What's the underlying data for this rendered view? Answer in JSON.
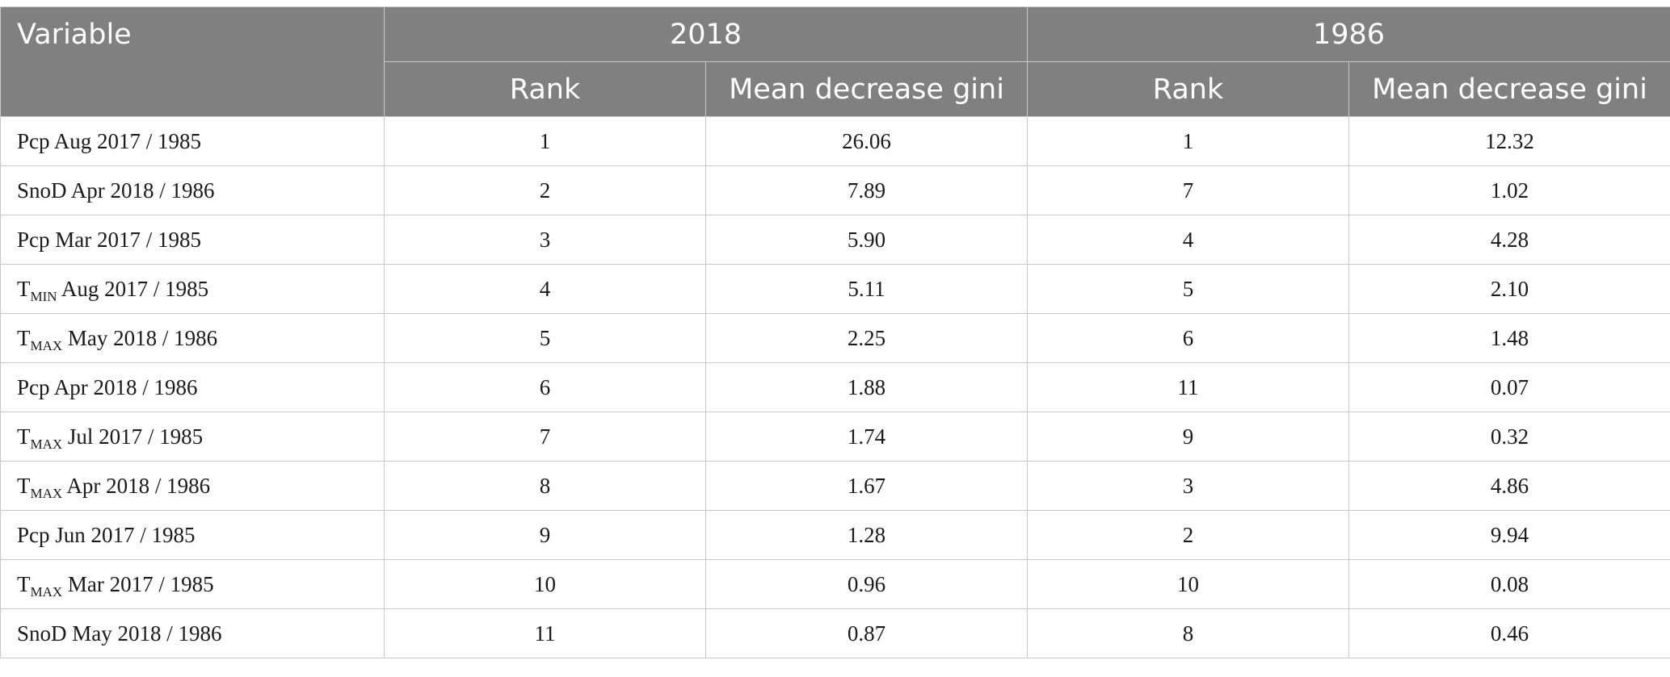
{
  "header": {
    "variable": "Variable",
    "group_2018": "2018",
    "group_1986": "1986",
    "rank": "Rank",
    "mdg": "Mean decrease gini"
  },
  "rows": [
    {
      "prefix": "Pcp",
      "sub": "",
      "rest": " Aug 2017 / 1985",
      "rank_2018": "1",
      "mdg_2018": "26.06",
      "rank_1986": "1",
      "mdg_1986": "12.32"
    },
    {
      "prefix": "SnoD",
      "sub": "",
      "rest": " Apr 2018 / 1986",
      "rank_2018": "2",
      "mdg_2018": "7.89",
      "rank_1986": "7",
      "mdg_1986": "1.02"
    },
    {
      "prefix": "Pcp",
      "sub": "",
      "rest": " Mar 2017 / 1985",
      "rank_2018": "3",
      "mdg_2018": "5.90",
      "rank_1986": "4",
      "mdg_1986": "4.28"
    },
    {
      "prefix": "T",
      "sub": "MIN",
      "rest": " Aug 2017 / 1985",
      "rank_2018": "4",
      "mdg_2018": "5.11",
      "rank_1986": "5",
      "mdg_1986": "2.10"
    },
    {
      "prefix": "T",
      "sub": "MAX",
      "rest": " May 2018 / 1986",
      "rank_2018": "5",
      "mdg_2018": "2.25",
      "rank_1986": "6",
      "mdg_1986": "1.48"
    },
    {
      "prefix": "Pcp",
      "sub": "",
      "rest": " Apr 2018 / 1986",
      "rank_2018": "6",
      "mdg_2018": "1.88",
      "rank_1986": "11",
      "mdg_1986": "0.07"
    },
    {
      "prefix": "T",
      "sub": "MAX",
      "rest": " Jul 2017 / 1985",
      "rank_2018": "7",
      "mdg_2018": "1.74",
      "rank_1986": "9",
      "mdg_1986": "0.32"
    },
    {
      "prefix": "T",
      "sub": "MAX",
      "rest": " Apr 2018 / 1986",
      "rank_2018": "8",
      "mdg_2018": "1.67",
      "rank_1986": "3",
      "mdg_1986": "4.86"
    },
    {
      "prefix": "Pcp",
      "sub": "",
      "rest": " Jun 2017 / 1985",
      "rank_2018": "9",
      "mdg_2018": "1.28",
      "rank_1986": "2",
      "mdg_1986": "9.94"
    },
    {
      "prefix": "T",
      "sub": "MAX",
      "rest": " Mar 2017 / 1985",
      "rank_2018": "10",
      "mdg_2018": "0.96",
      "rank_1986": "10",
      "mdg_1986": "0.08"
    },
    {
      "prefix": "SnoD",
      "sub": "",
      "rest": " May 2018 / 1986",
      "rank_2018": "11",
      "mdg_2018": "0.87",
      "rank_1986": "8",
      "mdg_1986": "0.46"
    }
  ]
}
